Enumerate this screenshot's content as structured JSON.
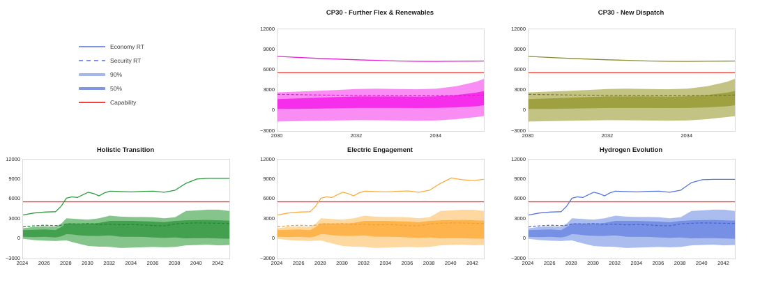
{
  "figure": {
    "background": "#ffffff"
  },
  "legend": {
    "items": [
      {
        "label": "Economy RT",
        "style": "line",
        "color": "#7B96DF"
      },
      {
        "label": "Security RT",
        "style": "dashed",
        "color": "#7B96DF"
      },
      {
        "label": "90%",
        "style": "band",
        "color": "#A5B7EC"
      },
      {
        "label": "50%",
        "style": "band",
        "color": "#7E97E3"
      },
      {
        "label": "Capability",
        "style": "line",
        "color": "#F4413B"
      }
    ]
  },
  "colors": {
    "capability": "#F4413B",
    "frame": "#D9D9D9",
    "tick_text": "#262626",
    "title_text": "#1A1A1A"
  },
  "chart_data": [
    {
      "type": "area",
      "title": "CP30 - Further Flex & Renewables",
      "palette": {
        "line": "#E81CD9",
        "dashed": "#DA1ACB",
        "band50": "#F62EEC",
        "band90": "#FA8DF3"
      },
      "x_range": [
        2030,
        2035.2
      ],
      "y_range": [
        -3000,
        12000
      ],
      "x_ticks": [
        2030,
        2032,
        2034
      ],
      "y_ticks": [
        12000,
        9000,
        6000,
        3000,
        0,
        -3000
      ],
      "y_tick_labels": [
        "12000",
        "9000",
        "6000",
        "3000",
        "0",
        "−3000"
      ],
      "grid": "off",
      "capability": 5600,
      "x": [
        2030,
        2030.5,
        2031,
        2031.5,
        2032,
        2032.5,
        2033,
        2033.5,
        2034,
        2034.5,
        2035,
        2035.2
      ],
      "economy": [
        8000,
        7850,
        7720,
        7600,
        7500,
        7420,
        7330,
        7270,
        7260,
        7280,
        7300,
        7310
      ],
      "security": [
        2400,
        2360,
        2310,
        2280,
        2250,
        2230,
        2210,
        2200,
        2210,
        2230,
        2270,
        2300
      ],
      "p50_low": [
        250,
        270,
        300,
        350,
        400,
        400,
        400,
        390,
        400,
        480,
        650,
        800
      ],
      "p50_high": [
        1700,
        1800,
        1900,
        2000,
        2100,
        2100,
        2100,
        2080,
        2120,
        2300,
        2650,
        2900
      ],
      "p90_low": [
        -1600,
        -1550,
        -1500,
        -1450,
        -1400,
        -1420,
        -1450,
        -1480,
        -1450,
        -1250,
        -950,
        -800
      ],
      "p90_high": [
        2700,
        2800,
        2920,
        3050,
        3200,
        3250,
        3200,
        3150,
        3250,
        3600,
        4250,
        4700
      ]
    },
    {
      "type": "area",
      "title": "CP30 - New Dispatch",
      "palette": {
        "line": "#8B8C2D",
        "dashed": "#74752B",
        "band50": "#9FA040",
        "band90": "#C3C383"
      },
      "x_range": [
        2030,
        2035.2
      ],
      "y_range": [
        -3000,
        12000
      ],
      "x_ticks": [
        2030,
        2032,
        2034
      ],
      "y_ticks": [
        12000,
        9000,
        6000,
        3000,
        0,
        -3000
      ],
      "y_tick_labels": [
        "12000",
        "9000",
        "6000",
        "3000",
        "0",
        "−3000"
      ],
      "grid": "off",
      "capability": 5600,
      "x": [
        2030,
        2030.5,
        2031,
        2031.5,
        2032,
        2032.5,
        2033,
        2033.5,
        2034,
        2034.5,
        2035,
        2035.2
      ],
      "economy": [
        8000,
        7850,
        7720,
        7600,
        7500,
        7420,
        7330,
        7270,
        7260,
        7280,
        7300,
        7310
      ],
      "security": [
        2400,
        2360,
        2310,
        2280,
        2250,
        2230,
        2210,
        2200,
        2210,
        2230,
        2270,
        2300
      ],
      "p50_low": [
        250,
        270,
        300,
        350,
        400,
        400,
        400,
        390,
        400,
        480,
        650,
        800
      ],
      "p50_high": [
        1700,
        1800,
        1900,
        2000,
        2100,
        2100,
        2100,
        2080,
        2120,
        2300,
        2650,
        2900
      ],
      "p90_low": [
        -1600,
        -1550,
        -1500,
        -1450,
        -1400,
        -1420,
        -1450,
        -1480,
        -1450,
        -1250,
        -950,
        -800
      ],
      "p90_high": [
        2700,
        2800,
        2920,
        3050,
        3200,
        3250,
        3200,
        3150,
        3250,
        3600,
        4250,
        4700
      ]
    },
    {
      "type": "area",
      "title": "Holistic Transition",
      "palette": {
        "line": "#2E9B3E",
        "dashed": "#1E8A2F",
        "band50": "#43A04F",
        "band90": "#85C58B"
      },
      "x_range": [
        2024,
        2043
      ],
      "y_range": [
        -3000,
        12000
      ],
      "x_ticks": [
        2024,
        2026,
        2028,
        2030,
        2032,
        2034,
        2036,
        2038,
        2040,
        2042
      ],
      "y_ticks": [
        12000,
        9000,
        6000,
        3000,
        0,
        -3000
      ],
      "y_tick_labels": [
        "12000",
        "9000",
        "6000",
        "3000",
        "0",
        "−3000"
      ],
      "grid": "off",
      "capability": 5600,
      "x": [
        2024,
        2025,
        2026,
        2027,
        2027.5,
        2028,
        2028.5,
        2029,
        2029.5,
        2030,
        2030.5,
        2031,
        2031.5,
        2032,
        2033,
        2034,
        2035,
        2036,
        2037,
        2038,
        2039,
        2040,
        2041,
        2042,
        2043
      ],
      "economy": [
        3600,
        3900,
        4050,
        4100,
        4900,
        6150,
        6350,
        6250,
        6650,
        7050,
        6850,
        6500,
        6950,
        7200,
        7150,
        7100,
        7180,
        7200,
        7050,
        7350,
        8400,
        9050,
        9150,
        9150,
        9150
      ],
      "security": [
        1800,
        1950,
        2050,
        2000,
        2050,
        2250,
        2280,
        2230,
        2270,
        2300,
        2250,
        2150,
        2200,
        2200,
        2100,
        2150,
        2100,
        2000,
        1950,
        2250,
        2350,
        2400,
        2380,
        2350,
        2300
      ],
      "p50_low": [
        300,
        250,
        300,
        200,
        350,
        700,
        650,
        550,
        480,
        430,
        420,
        420,
        460,
        500,
        300,
        300,
        280,
        200,
        120,
        200,
        50,
        100,
        80,
        30,
        0
      ],
      "p50_high": [
        1300,
        1350,
        1400,
        1300,
        1750,
        2300,
        2320,
        2300,
        2300,
        2300,
        2320,
        2400,
        2550,
        2700,
        2700,
        2700,
        2650,
        2600,
        2500,
        2700,
        2800,
        2820,
        2850,
        2800,
        2750
      ],
      "p90_low": [
        0,
        -200,
        -300,
        -350,
        -300,
        -250,
        -500,
        -700,
        -900,
        -1100,
        -1150,
        -1200,
        -1200,
        -1250,
        -1400,
        -1350,
        -1300,
        -1250,
        -1300,
        -1250,
        -1000,
        -950,
        -900,
        -1000,
        -950
      ],
      "p90_high": [
        1600,
        1800,
        1900,
        1850,
        2250,
        3100,
        3050,
        3000,
        2950,
        2900,
        3000,
        3100,
        3300,
        3500,
        3350,
        3300,
        3300,
        3250,
        3100,
        3250,
        4200,
        4300,
        4400,
        4400,
        4200
      ]
    },
    {
      "type": "area",
      "title": "Electric Engagement",
      "palette": {
        "line": "#FAAD3C",
        "dashed": "#F0A030",
        "band50": "#FDB44D",
        "band90": "#FDD9A1"
      },
      "x_range": [
        2024,
        2043
      ],
      "y_range": [
        -3000,
        12000
      ],
      "x_ticks": [
        2024,
        2026,
        2028,
        2030,
        2032,
        2034,
        2036,
        2038,
        2040,
        2042
      ],
      "y_ticks": [
        12000,
        9000,
        6000,
        3000,
        0,
        -3000
      ],
      "y_tick_labels": [
        "12000",
        "9000",
        "6000",
        "3000",
        "0",
        "−3000"
      ],
      "grid": "off",
      "capability": 5600,
      "x": [
        2024,
        2025,
        2026,
        2027,
        2027.5,
        2028,
        2028.5,
        2029,
        2029.5,
        2030,
        2030.5,
        2031,
        2031.5,
        2032,
        2033,
        2034,
        2035,
        2036,
        2037,
        2038,
        2039,
        2040,
        2041,
        2042,
        2043
      ],
      "economy": [
        3600,
        3900,
        4050,
        4100,
        4900,
        6150,
        6350,
        6250,
        6650,
        7050,
        6850,
        6500,
        6950,
        7200,
        7150,
        7100,
        7180,
        7250,
        7050,
        7350,
        8400,
        9200,
        8950,
        8820,
        9000
      ],
      "security": [
        1800,
        1950,
        2050,
        2000,
        2050,
        2250,
        2280,
        2230,
        2270,
        2300,
        2250,
        2150,
        2200,
        2200,
        2100,
        2150,
        2100,
        2000,
        1950,
        2250,
        2350,
        2400,
        2380,
        2350,
        2300
      ],
      "p50_low": [
        300,
        250,
        300,
        200,
        350,
        700,
        650,
        550,
        480,
        430,
        420,
        420,
        460,
        500,
        300,
        300,
        280,
        200,
        120,
        200,
        50,
        100,
        80,
        30,
        0
      ],
      "p50_high": [
        1300,
        1350,
        1400,
        1300,
        1750,
        2300,
        2320,
        2300,
        2300,
        2300,
        2320,
        2400,
        2550,
        2700,
        2700,
        2700,
        2650,
        2600,
        2500,
        2700,
        2800,
        2820,
        2850,
        2800,
        2750
      ],
      "p90_low": [
        0,
        -200,
        -300,
        -350,
        -300,
        -250,
        -500,
        -700,
        -900,
        -1100,
        -1150,
        -1200,
        -1200,
        -1250,
        -1400,
        -1350,
        -1300,
        -1250,
        -1300,
        -1250,
        -1000,
        -950,
        -900,
        -1000,
        -950
      ],
      "p90_high": [
        1600,
        1800,
        1900,
        1850,
        2250,
        3100,
        3050,
        3000,
        2950,
        2900,
        3000,
        3100,
        3300,
        3500,
        3350,
        3300,
        3300,
        3250,
        3100,
        3250,
        4200,
        4300,
        4400,
        4400,
        4200
      ]
    },
    {
      "type": "area",
      "title": "Hydrogen Evolution",
      "palette": {
        "line": "#5276DB",
        "dashed": "#4464CE",
        "band50": "#7590E4",
        "band90": "#ABBDEF"
      },
      "x_range": [
        2024,
        2043
      ],
      "y_range": [
        -3000,
        12000
      ],
      "x_ticks": [
        2024,
        2026,
        2028,
        2030,
        2032,
        2034,
        2036,
        2038,
        2040,
        2042
      ],
      "y_ticks": [
        12000,
        9000,
        6000,
        3000,
        0,
        -3000
      ],
      "y_tick_labels": [
        "12000",
        "9000",
        "6000",
        "3000",
        "0",
        "−3000"
      ],
      "grid": "off",
      "capability": 5600,
      "x": [
        2024,
        2025,
        2026,
        2027,
        2027.5,
        2028,
        2028.5,
        2029,
        2029.5,
        2030,
        2030.5,
        2031,
        2031.5,
        2032,
        2033,
        2034,
        2035,
        2036,
        2037,
        2038,
        2039,
        2040,
        2041,
        2042,
        2043
      ],
      "economy": [
        3600,
        3900,
        4050,
        4100,
        4900,
        6150,
        6350,
        6250,
        6650,
        7050,
        6850,
        6500,
        6950,
        7200,
        7150,
        7100,
        7180,
        7200,
        7050,
        7350,
        8500,
        8950,
        9000,
        9000,
        9000
      ],
      "security": [
        1800,
        1950,
        2050,
        2000,
        2050,
        2250,
        2280,
        2230,
        2270,
        2300,
        2250,
        2150,
        2200,
        2200,
        2100,
        2150,
        2100,
        2000,
        1950,
        2250,
        2350,
        2400,
        2380,
        2350,
        2300
      ],
      "p50_low": [
        300,
        250,
        300,
        200,
        350,
        700,
        650,
        550,
        480,
        430,
        420,
        420,
        460,
        500,
        300,
        300,
        280,
        200,
        120,
        200,
        50,
        100,
        80,
        30,
        0
      ],
      "p50_high": [
        1300,
        1350,
        1400,
        1300,
        1750,
        2300,
        2320,
        2300,
        2300,
        2300,
        2320,
        2400,
        2550,
        2700,
        2700,
        2700,
        2650,
        2600,
        2500,
        2700,
        2800,
        2820,
        2850,
        2800,
        2750
      ],
      "p90_low": [
        0,
        -200,
        -300,
        -350,
        -300,
        -250,
        -500,
        -700,
        -900,
        -1100,
        -1150,
        -1200,
        -1200,
        -1250,
        -1400,
        -1350,
        -1300,
        -1250,
        -1300,
        -1250,
        -1000,
        -950,
        -900,
        -1000,
        -950
      ],
      "p90_high": [
        1600,
        1800,
        1900,
        1850,
        2250,
        3100,
        3050,
        3000,
        2950,
        2900,
        3000,
        3100,
        3300,
        3500,
        3350,
        3300,
        3300,
        3250,
        3100,
        3250,
        4200,
        4300,
        4400,
        4400,
        4200
      ]
    }
  ]
}
